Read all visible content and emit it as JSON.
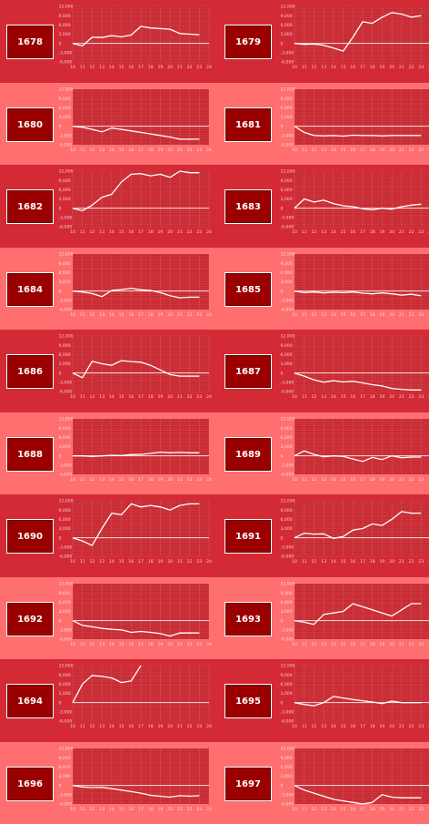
{
  "buttons": [
    {
      "label": "1678"
    },
    {
      "label": "1679"
    },
    {
      "label": "1680"
    },
    {
      "label": "1681"
    },
    {
      "label": "1682"
    },
    {
      "label": "1683"
    },
    {
      "label": "1684"
    },
    {
      "label": "1685"
    },
    {
      "label": "1686"
    },
    {
      "label": "1687"
    },
    {
      "label": "1688"
    },
    {
      "label": "1689"
    },
    {
      "label": "1690"
    },
    {
      "label": "1691"
    },
    {
      "label": "1692"
    },
    {
      "label": "1693"
    },
    {
      "label": "1694"
    },
    {
      "label": "1695"
    },
    {
      "label": "1696"
    },
    {
      "label": "1697"
    }
  ],
  "colors": {
    "dark_bg": "#d32a36",
    "light_bg": "#ff6f6f",
    "button_bg": "#9a0000",
    "plot_bg": "#c92a32",
    "line": "#ffffff"
  },
  "chart_data": [
    {
      "type": "line",
      "id": "1678",
      "x": [
        10,
        11,
        12,
        13,
        14,
        15,
        16,
        17,
        18,
        19,
        20,
        21,
        22,
        23
      ],
      "y": [
        0,
        -800,
        2000,
        1900,
        2500,
        2100,
        2700,
        5500,
        5000,
        4800,
        4600,
        3200,
        3000,
        2800
      ],
      "xlim": [
        10,
        24
      ],
      "ylim": [
        -6000,
        12000
      ],
      "yticks": [
        "12,000",
        "9,000",
        "6,000",
        "3,000",
        "0",
        "-3,000",
        "-6,000"
      ],
      "xticks": [
        "10",
        "11",
        "12",
        "13",
        "14",
        "15",
        "16",
        "17",
        "18",
        "19",
        "20",
        "21",
        "22",
        "23",
        "24"
      ]
    },
    {
      "type": "line",
      "id": "1679",
      "x": [
        10,
        11,
        12,
        13,
        14,
        15,
        16,
        17,
        18,
        19,
        20,
        21,
        22,
        23
      ],
      "y": [
        0,
        -300,
        -200,
        -600,
        -1500,
        -2500,
        2000,
        7000,
        6500,
        8500,
        10000,
        9500,
        8500,
        9000
      ],
      "xlim": [
        10,
        24
      ],
      "ylim": [
        -6000,
        12000
      ],
      "yticks": [
        "12,000",
        "9,000",
        "6,000",
        "3,000",
        "0",
        "-3,000",
        "-6,000"
      ],
      "xticks": [
        "10",
        "11",
        "12",
        "13",
        "14",
        "15",
        "16",
        "17",
        "18",
        "19",
        "20",
        "21",
        "22",
        "23",
        "24"
      ]
    },
    {
      "type": "line",
      "id": "1680",
      "x": [
        10,
        11,
        12,
        13,
        14,
        15,
        16,
        17,
        18,
        19,
        20,
        21,
        22,
        23
      ],
      "y": [
        0,
        -300,
        -1000,
        -1800,
        -600,
        -1000,
        -1500,
        -2000,
        -2500,
        -3000,
        -3500,
        -4200,
        -4200,
        -4200
      ],
      "xlim": [
        10,
        24
      ],
      "ylim": [
        -6000,
        12000
      ],
      "yticks": [
        "12,000",
        "9,000",
        "6,000",
        "3,000",
        "0",
        "-3,000",
        "-6,000"
      ],
      "xticks": [
        "10",
        "11",
        "12",
        "13",
        "14",
        "15",
        "16",
        "17",
        "18",
        "19",
        "20",
        "21",
        "22",
        "23",
        "24"
      ]
    },
    {
      "type": "line",
      "id": "1681",
      "x": [
        10,
        11,
        12,
        13,
        14,
        15,
        16,
        17,
        18,
        19,
        20,
        21,
        22,
        23
      ],
      "y": [
        0,
        -2000,
        -3000,
        -3100,
        -3000,
        -3200,
        -2900,
        -3000,
        -3000,
        -3100,
        -3000,
        -3000,
        -3000,
        -3000
      ],
      "xlim": [
        10,
        24
      ],
      "ylim": [
        -6000,
        12000
      ],
      "yticks": [
        "12,000",
        "9,000",
        "6,000",
        "3,000",
        "0",
        "-3,000",
        "-6,000"
      ],
      "xticks": [
        "10",
        "11",
        "12",
        "13",
        "14",
        "15",
        "16",
        "17",
        "18",
        "19",
        "20",
        "21",
        "22",
        "23",
        "24"
      ]
    },
    {
      "type": "line",
      "id": "1682",
      "x": [
        10,
        11,
        12,
        13,
        14,
        15,
        16,
        17,
        18,
        19,
        20,
        21,
        22,
        23
      ],
      "y": [
        0,
        -800,
        1000,
        3500,
        4500,
        8500,
        11000,
        11200,
        10500,
        11000,
        10000,
        12000,
        11500,
        11500
      ],
      "xlim": [
        10,
        24
      ],
      "ylim": [
        -6000,
        12000
      ],
      "yticks": [
        "12,000",
        "9,000",
        "6,000",
        "3,000",
        "0",
        "-3,000",
        "-6,000"
      ],
      "xticks": [
        "10",
        "11",
        "12",
        "13",
        "14",
        "15",
        "16",
        "17",
        "18",
        "19",
        "20",
        "21",
        "22",
        "23",
        "24"
      ]
    },
    {
      "type": "line",
      "id": "1683",
      "x": [
        10,
        11,
        12,
        13,
        14,
        15,
        16,
        17,
        18,
        19,
        20,
        21,
        22,
        23
      ],
      "y": [
        0,
        3000,
        2000,
        2600,
        1500,
        800,
        500,
        -200,
        -500,
        0,
        -300,
        500,
        1000,
        1300
      ],
      "xlim": [
        10,
        24
      ],
      "ylim": [
        -6000,
        12000
      ],
      "yticks": [
        "12,000",
        "9,000",
        "6,000",
        "3,000",
        "0",
        "-3,000",
        "-6,000"
      ],
      "xticks": [
        "10",
        "11",
        "12",
        "13",
        "14",
        "15",
        "16",
        "17",
        "18",
        "19",
        "20",
        "21",
        "22",
        "23",
        "24"
      ]
    },
    {
      "type": "line",
      "id": "1684",
      "x": [
        10,
        11,
        12,
        13,
        14,
        15,
        16,
        17,
        18,
        19,
        20,
        21,
        22,
        23
      ],
      "y": [
        0,
        -300,
        -800,
        -1800,
        200,
        500,
        900,
        400,
        200,
        -500,
        -1500,
        -2200,
        -2000,
        -2000
      ],
      "xlim": [
        10,
        24
      ],
      "ylim": [
        -6000,
        12000
      ],
      "yticks": [
        "12,000",
        "9,000",
        "6,000",
        "3,000",
        "0",
        "-3,000",
        "-6,000"
      ],
      "xticks": [
        "10",
        "11",
        "12",
        "13",
        "14",
        "15",
        "16",
        "17",
        "18",
        "19",
        "20",
        "21",
        "22",
        "23",
        "24"
      ]
    },
    {
      "type": "line",
      "id": "1685",
      "x": [
        10,
        11,
        12,
        13,
        14,
        15,
        16,
        17,
        18,
        19,
        20,
        21,
        22,
        23
      ],
      "y": [
        0,
        -500,
        -300,
        -600,
        -400,
        -500,
        -300,
        -700,
        -900,
        -600,
        -900,
        -1300,
        -1000,
        -1500
      ],
      "xlim": [
        10,
        24
      ],
      "ylim": [
        -6000,
        12000
      ],
      "yticks": [
        "12,000",
        "9,000",
        "6,000",
        "3,000",
        "0",
        "-3,000",
        "-6,000"
      ],
      "xticks": [
        "10",
        "11",
        "12",
        "13",
        "14",
        "15",
        "16",
        "17",
        "18",
        "19",
        "20",
        "21",
        "22",
        "23",
        "24"
      ]
    },
    {
      "type": "line",
      "id": "1686",
      "x": [
        10,
        11,
        12,
        13,
        14,
        15,
        16,
        17,
        18,
        19,
        20,
        21,
        22,
        23
      ],
      "y": [
        0,
        -1500,
        3800,
        3000,
        2500,
        4000,
        3700,
        3500,
        2500,
        1000,
        -500,
        -1000,
        -1000,
        -1000
      ],
      "xlim": [
        10,
        24
      ],
      "ylim": [
        -6000,
        12000
      ],
      "yticks": [
        "12,000",
        "9,000",
        "6,000",
        "3,000",
        "0",
        "-3,000",
        "-6,000"
      ],
      "xticks": [
        "10",
        "11",
        "12",
        "13",
        "14",
        "15",
        "16",
        "17",
        "18",
        "19",
        "20",
        "21",
        "22",
        "23",
        "24"
      ]
    },
    {
      "type": "line",
      "id": "1687",
      "x": [
        10,
        11,
        12,
        13,
        14,
        15,
        16,
        17,
        18,
        19,
        20,
        21,
        22,
        23
      ],
      "y": [
        0,
        -1000,
        -2200,
        -3000,
        -2500,
        -2900,
        -2700,
        -3200,
        -3800,
        -4200,
        -5000,
        -5300,
        -5500,
        -5500
      ],
      "xlim": [
        10,
        24
      ],
      "ylim": [
        -6000,
        12000
      ],
      "yticks": [
        "12,000",
        "9,000",
        "6,000",
        "3,000",
        "0",
        "-3,000",
        "-6,000"
      ],
      "xticks": [
        "10",
        "11",
        "12",
        "13",
        "14",
        "15",
        "16",
        "17",
        "18",
        "19",
        "20",
        "21",
        "22",
        "23",
        "24"
      ]
    },
    {
      "type": "line",
      "id": "1688",
      "x": [
        10,
        11,
        12,
        13,
        14,
        15,
        16,
        17,
        18,
        19,
        20,
        21,
        22,
        23
      ],
      "y": [
        0,
        0,
        -200,
        0,
        200,
        100,
        400,
        500,
        800,
        1200,
        1000,
        1100,
        1000,
        1000
      ],
      "xlim": [
        10,
        24
      ],
      "ylim": [
        -6000,
        12000
      ],
      "yticks": [
        "12,000",
        "9,000",
        "6,000",
        "3,000",
        "0",
        "-3,000",
        "-6,000"
      ],
      "xticks": [
        "10",
        "11",
        "12",
        "13",
        "14",
        "15",
        "16",
        "17",
        "18",
        "19",
        "20",
        "21",
        "22",
        "23",
        "24"
      ]
    },
    {
      "type": "line",
      "id": "1689",
      "x": [
        10,
        11,
        12,
        13,
        14,
        15,
        16,
        17,
        18,
        19,
        20,
        21,
        22,
        23
      ],
      "y": [
        0,
        1600,
        500,
        -300,
        0,
        -200,
        -1000,
        -1800,
        -500,
        -1200,
        0,
        -600,
        -400,
        -400
      ],
      "xlim": [
        10,
        24
      ],
      "ylim": [
        -6000,
        12000
      ],
      "yticks": [
        "12,000",
        "9,000",
        "6,000",
        "3,000",
        "0",
        "-3,000",
        "-6,000"
      ],
      "xticks": [
        "10",
        "11",
        "12",
        "13",
        "14",
        "15",
        "16",
        "17",
        "18",
        "19",
        "20",
        "21",
        "22",
        "23",
        "24"
      ]
    },
    {
      "type": "line",
      "id": "1690",
      "x": [
        10,
        11,
        12,
        13,
        14,
        15,
        16,
        17,
        18,
        19,
        20,
        21,
        22,
        23
      ],
      "y": [
        0,
        -1000,
        -2500,
        3000,
        8000,
        7500,
        11000,
        10000,
        10500,
        10000,
        9000,
        10500,
        11000,
        11000
      ],
      "xlim": [
        10,
        24
      ],
      "ylim": [
        -6000,
        12000
      ],
      "yticks": [
        "12,000",
        "9,000",
        "6,000",
        "3,000",
        "0",
        "-3,000",
        "-6,000"
      ],
      "xticks": [
        "10",
        "11",
        "12",
        "13",
        "14",
        "15",
        "16",
        "17",
        "18",
        "19",
        "20",
        "21",
        "22",
        "23",
        "24"
      ]
    },
    {
      "type": "line",
      "id": "1691",
      "x": [
        10,
        11,
        12,
        13,
        14,
        15,
        16,
        17,
        18,
        19,
        20,
        21,
        22,
        23
      ],
      "y": [
        0,
        1500,
        1200,
        1300,
        -200,
        400,
        2500,
        3000,
        4500,
        4000,
        6000,
        8500,
        8000,
        8000
      ],
      "xlim": [
        10,
        24
      ],
      "ylim": [
        -6000,
        12000
      ],
      "yticks": [
        "12,000",
        "9,000",
        "6,000",
        "3,000",
        "0",
        "-3,000",
        "-6,000"
      ],
      "xticks": [
        "10",
        "11",
        "12",
        "13",
        "14",
        "15",
        "16",
        "17",
        "18",
        "19",
        "20",
        "21",
        "22",
        "23",
        "24"
      ]
    },
    {
      "type": "line",
      "id": "1692",
      "x": [
        10,
        11,
        12,
        13,
        14,
        15,
        16,
        17,
        18,
        19,
        20,
        21,
        22,
        23
      ],
      "y": [
        0,
        -1500,
        -2000,
        -2500,
        -2800,
        -3000,
        -3800,
        -3500,
        -3800,
        -4200,
        -5000,
        -4000,
        -4000,
        -4000
      ],
      "xlim": [
        10,
        24
      ],
      "ylim": [
        -6000,
        12000
      ],
      "yticks": [
        "12,000",
        "9,000",
        "6,000",
        "3,000",
        "0",
        "-3,000",
        "-6,000"
      ],
      "xticks": [
        "10",
        "11",
        "12",
        "13",
        "14",
        "15",
        "16",
        "17",
        "18",
        "19",
        "20",
        "21",
        "22",
        "23",
        "24"
      ]
    },
    {
      "type": "line",
      "id": "1693",
      "x": [
        10,
        11,
        12,
        13,
        14,
        15,
        16,
        17,
        18,
        19,
        20,
        21,
        22,
        23
      ],
      "y": [
        0,
        -500,
        -1200,
        2000,
        2500,
        3000,
        5500,
        4500,
        3500,
        2500,
        1500,
        3500,
        5500,
        5500
      ],
      "xlim": [
        10,
        24
      ],
      "ylim": [
        -6000,
        12000
      ],
      "yticks": [
        "12,000",
        "9,000",
        "6,000",
        "3,000",
        "0",
        "-3,000",
        "-6,000"
      ],
      "xticks": [
        "10",
        "11",
        "12",
        "13",
        "14",
        "15",
        "16",
        "17",
        "18",
        "19",
        "20",
        "21",
        "22",
        "23",
        "24"
      ]
    },
    {
      "type": "line",
      "id": "1694",
      "x": [
        10,
        11,
        12,
        13,
        14,
        15,
        16,
        17
      ],
      "y": [
        0,
        6000,
        8800,
        8500,
        8000,
        6500,
        7000,
        12000
      ],
      "xlim": [
        10,
        24
      ],
      "ylim": [
        -6000,
        12000
      ],
      "yticks": [
        "12,000",
        "9,000",
        "6,000",
        "3,000",
        "0",
        "-3,000",
        "-6,000"
      ],
      "xticks": [
        "10",
        "11",
        "12",
        "13",
        "14",
        "15",
        "16",
        "17",
        "18",
        "19",
        "20",
        "21",
        "22",
        "23",
        "24"
      ]
    },
    {
      "type": "line",
      "id": "1695",
      "x": [
        10,
        11,
        12,
        13,
        14,
        15,
        16,
        17,
        18,
        19,
        20,
        21,
        22,
        23
      ],
      "y": [
        0,
        -600,
        -1000,
        0,
        2000,
        1500,
        1000,
        600,
        200,
        -300,
        500,
        0,
        0,
        0
      ],
      "xlim": [
        10,
        24
      ],
      "ylim": [
        -6000,
        12000
      ],
      "yticks": [
        "12,000",
        "9,000",
        "6,000",
        "3,000",
        "0",
        "-3,000",
        "-6,000"
      ],
      "xticks": [
        "10",
        "11",
        "12",
        "13",
        "14",
        "15",
        "16",
        "17",
        "18",
        "19",
        "20",
        "21",
        "22",
        "23",
        "24"
      ]
    },
    {
      "type": "line",
      "id": "1696",
      "x": [
        10,
        11,
        12,
        13,
        14,
        15,
        16,
        17,
        18,
        19,
        20,
        21,
        22,
        23
      ],
      "y": [
        0,
        -500,
        -700,
        -600,
        -1000,
        -1500,
        -2000,
        -2500,
        -3200,
        -3500,
        -3800,
        -3300,
        -3500,
        -3300
      ],
      "xlim": [
        10,
        24
      ],
      "ylim": [
        -6000,
        12000
      ],
      "yticks": [
        "12,000",
        "9,000",
        "6,000",
        "3,000",
        "0",
        "-3,000",
        "-6,000"
      ],
      "xticks": [
        "10",
        "11",
        "12",
        "13",
        "14",
        "15",
        "16",
        "17",
        "18",
        "19",
        "20",
        "21",
        "22",
        "23",
        "24"
      ]
    },
    {
      "type": "line",
      "id": "1697",
      "x": [
        10,
        11,
        12,
        13,
        14,
        15,
        16,
        17,
        18,
        19,
        20,
        21,
        22,
        23
      ],
      "y": [
        0,
        -1500,
        -2500,
        -3500,
        -4500,
        -5000,
        -5500,
        -6000,
        -5500,
        -3000,
        -3800,
        -4000,
        -4000,
        -4000
      ],
      "xlim": [
        10,
        24
      ],
      "ylim": [
        -6000,
        12000
      ],
      "yticks": [
        "12,000",
        "9,000",
        "6,000",
        "3,000",
        "0",
        "-3,000",
        "-6,000"
      ],
      "xticks": [
        "10",
        "11",
        "12",
        "13",
        "14",
        "15",
        "16",
        "17",
        "18",
        "19",
        "20",
        "21",
        "22",
        "23",
        "24"
      ]
    }
  ]
}
